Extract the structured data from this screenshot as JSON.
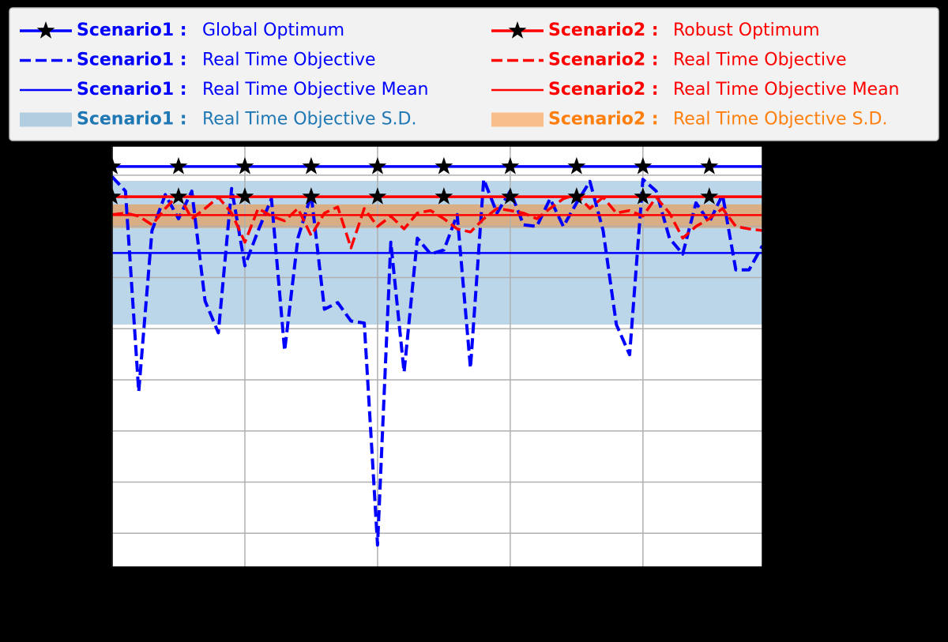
{
  "chart_data": {
    "type": "line",
    "xlim": [
      0,
      49
    ],
    "ylim": [
      -0.66,
      7.57
    ],
    "xticks": [
      0,
      10,
      20,
      30,
      40
    ],
    "yticks": [
      0,
      1,
      2,
      3,
      4,
      5,
      6,
      7
    ],
    "grid": true,
    "legend": "top",
    "series": [
      {
        "scenario": "Scenario1 :",
        "name": "Global Optimum",
        "kind": "hline",
        "color": "#0000ff",
        "value": 7.17,
        "markers": [
          0,
          5,
          10,
          15,
          20,
          25,
          30,
          35,
          40,
          45
        ]
      },
      {
        "scenario": "Scenario1 :",
        "name": "Real Time Objective",
        "kind": "dashed",
        "color": "#0000ff",
        "x": [
          0,
          1,
          2,
          3,
          4,
          5,
          6,
          7,
          8,
          9,
          10,
          11,
          12,
          13,
          14,
          15,
          16,
          17,
          18,
          19,
          20,
          21,
          22,
          23,
          24,
          25,
          26,
          27,
          28,
          29,
          30,
          31,
          32,
          33,
          34,
          35,
          36,
          37,
          38,
          39,
          40,
          41,
          42,
          43,
          44,
          45,
          46,
          47,
          48,
          49
        ],
        "values": [
          6.97,
          6.69,
          2.77,
          5.92,
          6.62,
          6.15,
          6.69,
          4.54,
          3.92,
          6.74,
          5.23,
          5.92,
          6.54,
          3.57,
          5.77,
          6.62,
          4.38,
          4.51,
          4.15,
          4.11,
          -0.23,
          5.69,
          3.15,
          5.77,
          5.46,
          5.54,
          6.23,
          3.23,
          6.92,
          6.26,
          6.69,
          6.03,
          6.0,
          6.54,
          6.0,
          6.46,
          6.88,
          5.92,
          4.08,
          3.49,
          6.92,
          6.69,
          5.77,
          5.46,
          6.46,
          6.08,
          6.62,
          5.15,
          5.15,
          5.62
        ]
      },
      {
        "scenario": "Scenario1 :",
        "name": "Real Time Objective Mean",
        "kind": "mean",
        "color": "#0000ff",
        "value": 5.48
      },
      {
        "scenario": "Scenario1 :",
        "name": "Real Time Objective S.D.",
        "kind": "band",
        "color": "#1f77b4",
        "range": [
          4.08,
          6.89
        ]
      },
      {
        "scenario": "Scenario2 :",
        "name": "Robust Optimum",
        "kind": "hline",
        "color": "#ff0000",
        "value": 6.58,
        "markers": [
          0,
          5,
          10,
          15,
          20,
          25,
          30,
          35,
          40,
          45
        ]
      },
      {
        "scenario": "Scenario2 :",
        "name": "Real Time Objective",
        "kind": "dashed",
        "color": "#ff0000",
        "x": [
          0,
          1,
          2,
          3,
          4,
          5,
          6,
          7,
          8,
          9,
          10,
          11,
          12,
          13,
          14,
          15,
          16,
          17,
          18,
          19,
          20,
          21,
          22,
          23,
          24,
          25,
          26,
          27,
          28,
          29,
          30,
          31,
          32,
          33,
          34,
          35,
          36,
          37,
          38,
          39,
          40,
          41,
          42,
          43,
          44,
          45,
          46,
          47,
          48,
          49
        ],
        "values": [
          6.23,
          6.26,
          6.2,
          6.03,
          6.35,
          6.62,
          6.15,
          6.35,
          6.57,
          6.26,
          5.69,
          6.35,
          6.2,
          6.11,
          6.35,
          5.82,
          6.26,
          6.38,
          5.58,
          6.35,
          6.0,
          6.2,
          5.95,
          6.26,
          6.31,
          6.15,
          5.95,
          5.89,
          6.15,
          6.35,
          6.31,
          6.26,
          6.15,
          6.35,
          6.54,
          6.62,
          6.35,
          6.57,
          6.26,
          6.31,
          6.2,
          6.57,
          6.26,
          5.77,
          6.0,
          6.15,
          6.35,
          6.0,
          5.95,
          5.92
        ]
      },
      {
        "scenario": "Scenario2 :",
        "name": "Real Time Objective Mean",
        "kind": "mean",
        "color": "#ff0000",
        "value": 6.22
      },
      {
        "scenario": "Scenario2 :",
        "name": "Real Time Objective S.D.",
        "kind": "band",
        "color": "#ff7f0e",
        "range": [
          5.97,
          6.43
        ]
      }
    ]
  }
}
